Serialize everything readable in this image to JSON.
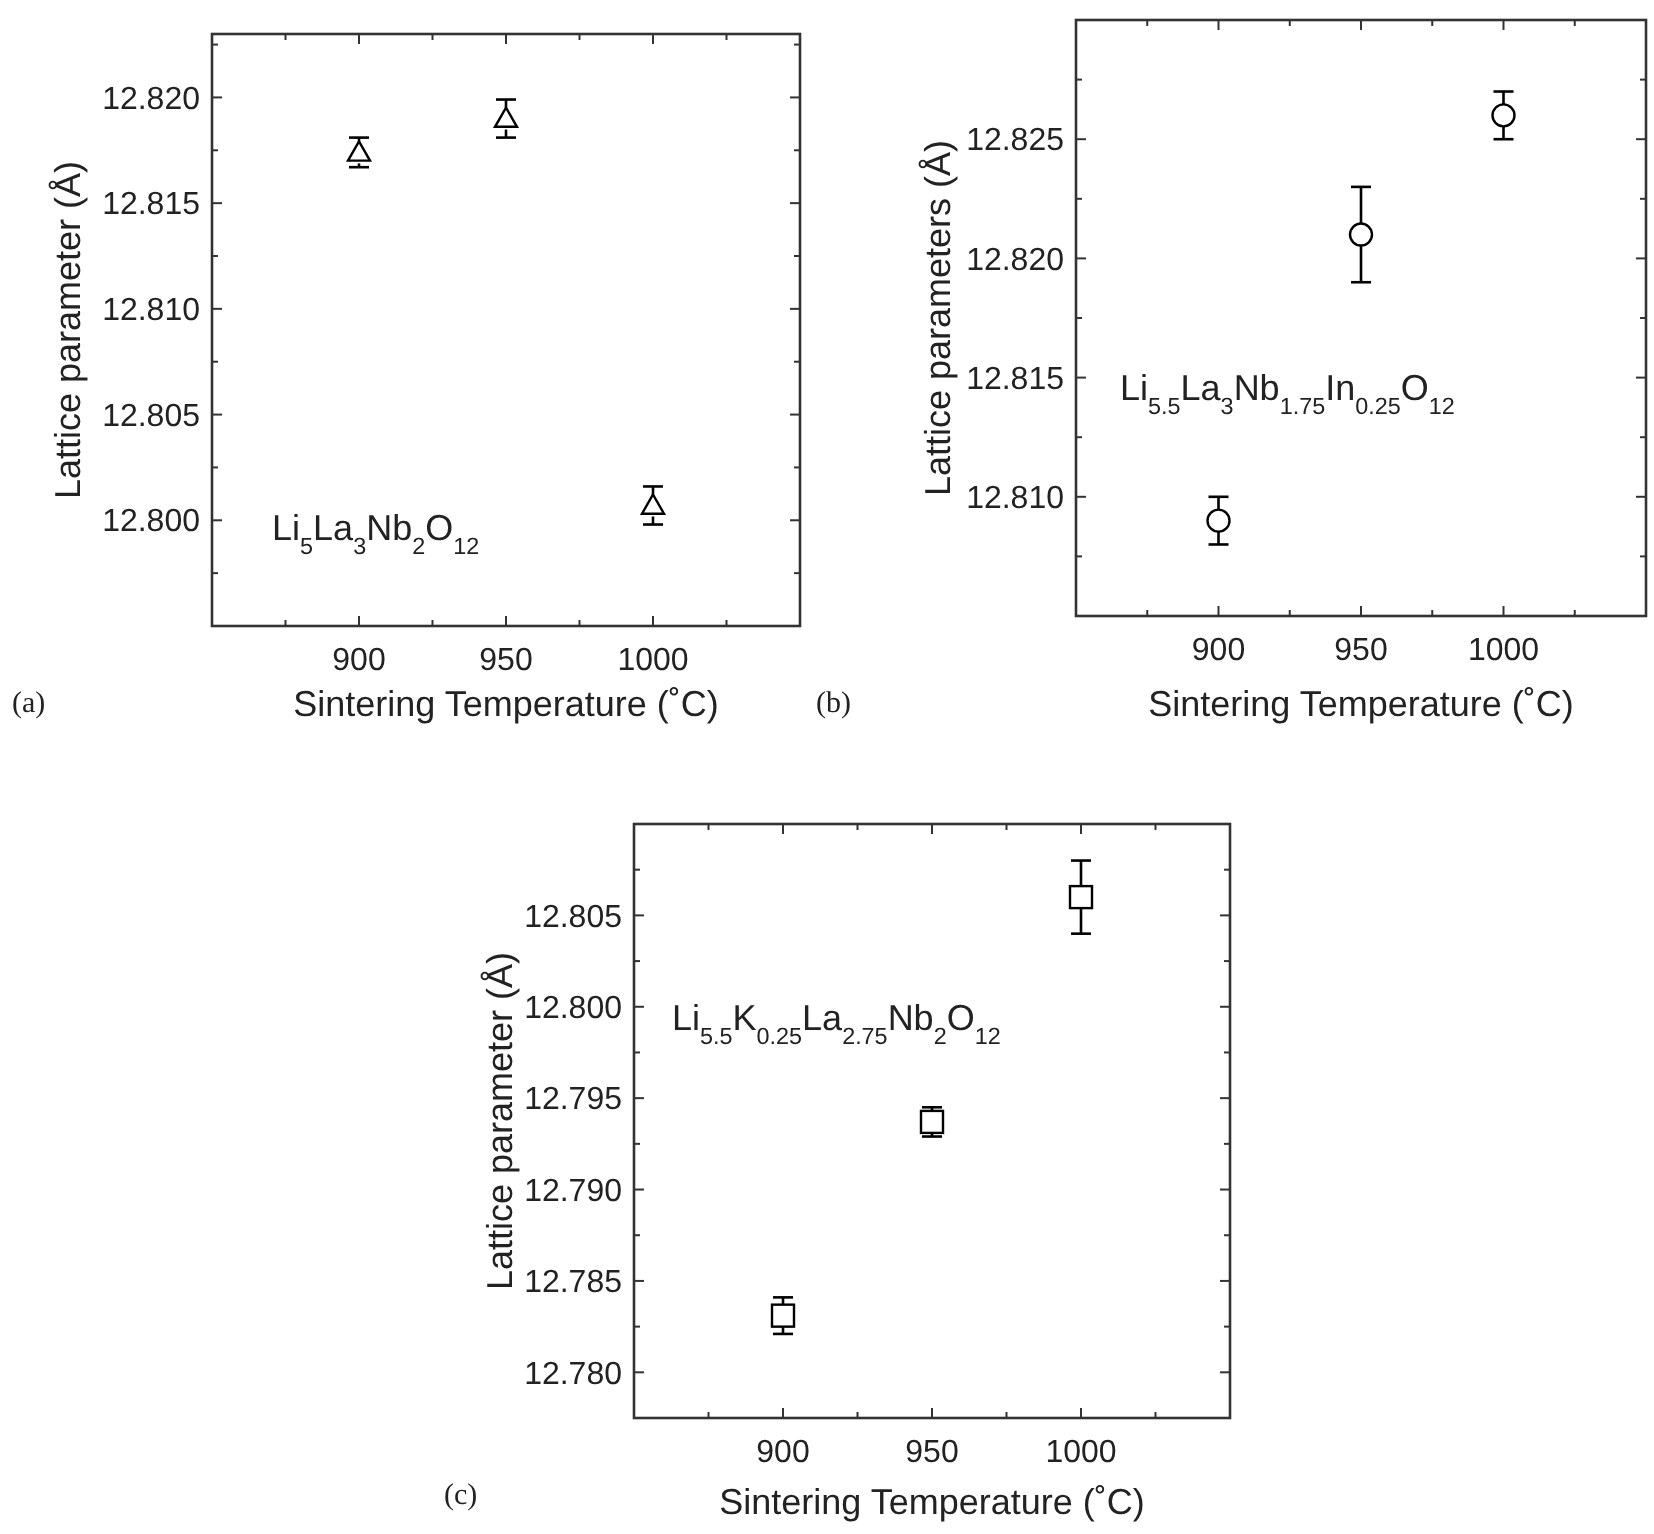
{
  "chart_data": [
    {
      "type": "scatter",
      "xlabel": "Sintering Temperature (˚C)",
      "ylabel": "Lattice parameter (Å)",
      "marker": "triangle",
      "grid": false,
      "x": [
        900,
        950,
        1000
      ],
      "series": [
        {
          "color": "#000000",
          "values": [
            12.8174,
            12.819,
            12.8007
          ],
          "errors": [
            0.0007,
            0.0009,
            0.0009
          ]
        }
      ],
      "xlim": [
        850,
        1050
      ],
      "xticks": [
        {
          "value": 875,
          "label": null
        },
        900,
        {
          "value": 925,
          "label": null
        },
        950,
        {
          "value": 975,
          "label": null
        },
        1000,
        {
          "value": 1025,
          "label": null
        }
      ],
      "ylim": [
        12.795,
        12.823
      ],
      "yticks": [
        {
          "value": 12.7975,
          "label": null
        },
        {
          "value": 12.8,
          "label": "12.800"
        },
        {
          "value": 12.8025,
          "label": null
        },
        {
          "value": 12.805,
          "label": "12.805"
        },
        {
          "value": 12.8075,
          "label": null
        },
        {
          "value": 12.81,
          "label": "12.810"
        },
        {
          "value": 12.8125,
          "label": null
        },
        {
          "value": 12.815,
          "label": "12.815"
        },
        {
          "value": 12.8175,
          "label": null
        },
        {
          "value": 12.82,
          "label": "12.820"
        },
        {
          "value": 12.8225,
          "label": null
        }
      ],
      "annotations": [
        "Li$_{5}$La$_{3}$Nb$_{2}$O$_{12}$",
        "(a)"
      ]
    },
    {
      "type": "scatter",
      "xlabel": "Sintering Temperature (˚C)",
      "ylabel": "Lattice parameters (Å)",
      "marker": "circle",
      "grid": false,
      "x": [
        900,
        950,
        1000
      ],
      "series": [
        {
          "color": "#000000",
          "values": [
            12.809,
            12.821,
            12.826
          ],
          "errors": [
            0.001,
            0.002,
            0.001
          ]
        }
      ],
      "xlim": [
        850,
        1050
      ],
      "xticks": [
        {
          "value": 875,
          "label": null
        },
        900,
        {
          "value": 925,
          "label": null
        },
        950,
        {
          "value": 975,
          "label": null
        },
        1000,
        {
          "value": 1025,
          "label": null
        }
      ],
      "ylim": [
        12.805,
        12.83
      ],
      "yticks": [
        {
          "value": 12.8075,
          "label": null
        },
        {
          "value": 12.81,
          "label": "12.810"
        },
        {
          "value": 12.8125,
          "label": null
        },
        {
          "value": 12.815,
          "label": "12.815"
        },
        {
          "value": 12.8175,
          "label": null
        },
        {
          "value": 12.82,
          "label": "12.820"
        },
        {
          "value": 12.8225,
          "label": null
        },
        {
          "value": 12.825,
          "label": "12.825"
        },
        {
          "value": 12.8275,
          "label": null
        }
      ],
      "annotations": [
        "Li$_{5.5}$La$_{3}$Nb$_{1.75}$In$_{0.25}$O$_{12}$",
        "(b)"
      ]
    },
    {
      "type": "scatter",
      "xlabel": "Sintering Temperature (˚C)",
      "ylabel": "Lattice parameter (Å)",
      "marker": "square",
      "grid": false,
      "x": [
        900,
        950,
        1000
      ],
      "series": [
        {
          "color": "#000000",
          "values": [
            12.7831,
            12.7937,
            12.806
          ],
          "errors": [
            0.001,
            0.0008,
            0.002
          ]
        }
      ],
      "xlim": [
        850,
        1050
      ],
      "xticks": [
        {
          "value": 875,
          "label": null
        },
        900,
        {
          "value": 925,
          "label": null
        },
        950,
        {
          "value": 975,
          "label": null
        },
        1000,
        {
          "value": 1025,
          "label": null
        }
      ],
      "ylim": [
        12.7775,
        12.81
      ],
      "yticks": [
        {
          "value": 12.78,
          "label": "12.780"
        },
        {
          "value": 12.7825,
          "label": null
        },
        {
          "value": 12.785,
          "label": "12.785"
        },
        {
          "value": 12.7875,
          "label": null
        },
        {
          "value": 12.79,
          "label": "12.790"
        },
        {
          "value": 12.7925,
          "label": null
        },
        {
          "value": 12.795,
          "label": "12.795"
        },
        {
          "value": 12.7975,
          "label": null
        },
        {
          "value": 12.8,
          "label": "12.800"
        },
        {
          "value": 12.8025,
          "label": null
        },
        {
          "value": 12.805,
          "label": "12.805"
        },
        {
          "value": 12.8075,
          "label": null
        }
      ],
      "annotations": [
        "Li$_{5.5}$K$_{0.25}$La$_{2.75}$Nb$_{2}$O$_{12}$",
        "(c)"
      ]
    }
  ]
}
